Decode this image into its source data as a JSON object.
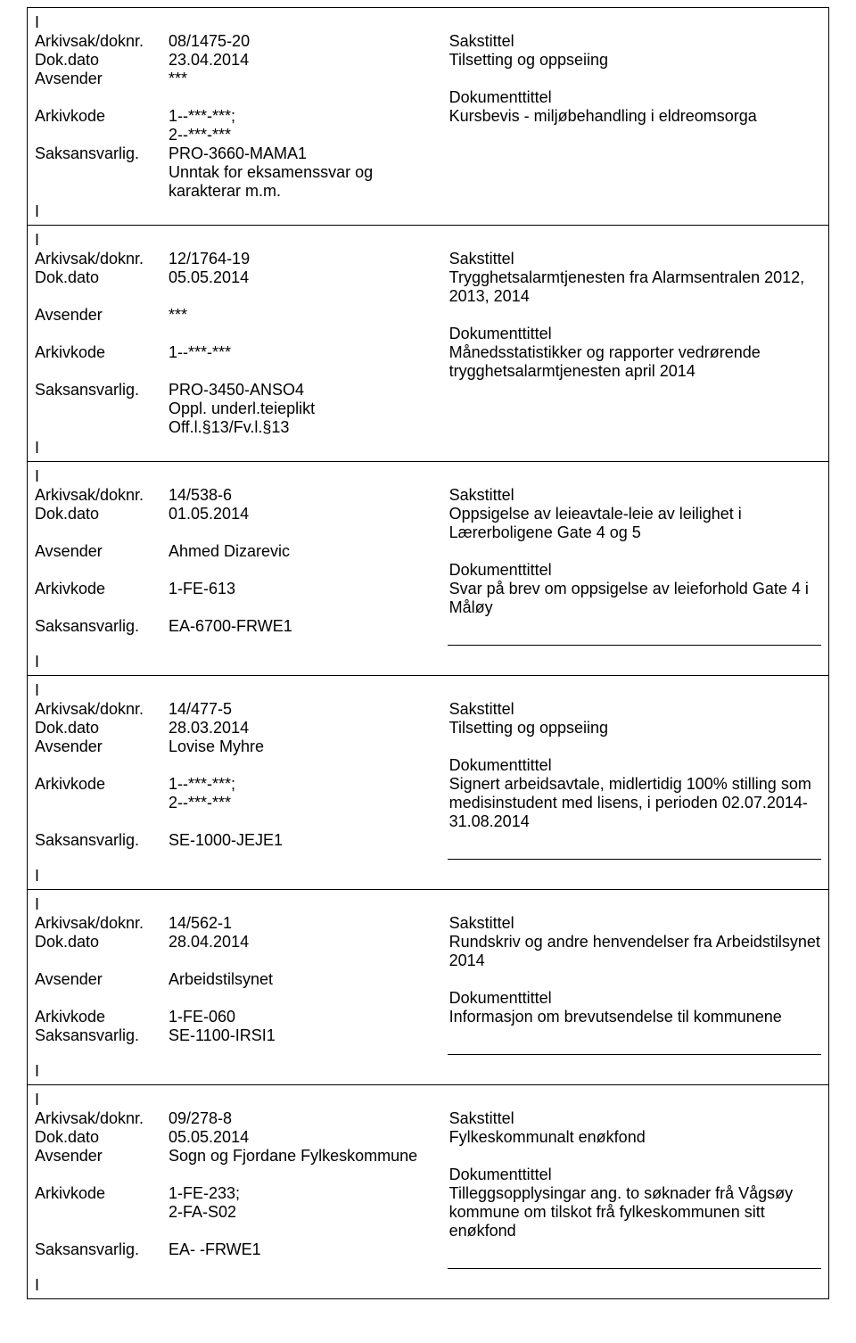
{
  "labels": {
    "arkivsak": "Arkivsak/doknr.",
    "dokdato": "Dok.dato",
    "avsender": "Avsender",
    "arkivkode": "Arkivkode",
    "saksansvarlig": "Saksansvarlig.",
    "sakstittel": "Sakstittel",
    "dokumenttittel": "Dokumenttittel",
    "i": "I"
  },
  "records": [
    {
      "arkivsak": "08/1475-20",
      "dokdato": "23.04.2014",
      "avsender": "***",
      "arkivkode": "1--***-***; 2--***-***",
      "saksansvarlig": "PRO-3660-MAMA1",
      "saksansvarlig_extra": "Unntak for eksamenssvar og karakterar m.m.",
      "sakstittel": "Tilsetting og oppseiing",
      "dokumenttittel": "Kursbevis - miljøbehandling i eldreomsorga",
      "has_separator": false
    },
    {
      "arkivsak": "12/1764-19",
      "dokdato": "05.05.2014",
      "avsender": "***",
      "arkivkode": "1--***-***",
      "saksansvarlig": "PRO-3450-ANSO4",
      "saksansvarlig_extra": "Oppl. underl.teieplikt Off.l.§13/Fv.l.§13",
      "sakstittel": "Trygghetsalarmtjenesten fra Alarmsentralen 2012, 2013, 2014",
      "dokumenttittel": "Månedsstatistikker og rapporter vedrørende trygghetsalarmtjenesten april 2014",
      "has_separator": false
    },
    {
      "arkivsak": "14/538-6",
      "dokdato": "01.05.2014",
      "avsender": "Ahmed Dizarevic",
      "arkivkode": "1-FE-613",
      "saksansvarlig": "EA-6700-FRWE1",
      "saksansvarlig_extra": "",
      "sakstittel": "Oppsigelse av leieavtale-leie av leilighet i Lærerboligene Gate 4 og 5",
      "dokumenttittel": "Svar på brev om oppsigelse av leieforhold Gate 4 i Måløy",
      "has_separator": true
    },
    {
      "arkivsak": "14/477-5",
      "dokdato": "28.03.2014",
      "avsender": "Lovise Myhre",
      "arkivkode": "1--***-***; 2--***-***",
      "saksansvarlig": "SE-1000-JEJE1",
      "saksansvarlig_extra": "",
      "sakstittel": "Tilsetting og oppseiing",
      "dokumenttittel": "Signert arbeidsavtale, midlertidig 100% stilling som medisinstudent med lisens, i perioden 02.07.2014-31.08.2014",
      "has_separator": true
    },
    {
      "arkivsak": "14/562-1",
      "dokdato": "28.04.2014",
      "avsender": "Arbeidstilsynet",
      "arkivkode": "1-FE-060",
      "saksansvarlig": "SE-1100-IRSI1",
      "saksansvarlig_extra": "",
      "sakstittel": "Rundskriv og andre henvendelser fra Arbeidstilsynet 2014",
      "dokumenttittel": "Informasjon om brevutsendelse til kommunene",
      "has_separator": true
    },
    {
      "arkivsak": "09/278-8",
      "dokdato": "05.05.2014",
      "avsender": "Sogn og Fjordane Fylkeskommune",
      "arkivkode": "1-FE-233; 2-FA-S02",
      "saksansvarlig": "EA- -FRWE1",
      "saksansvarlig_extra": "",
      "sakstittel": "Fylkeskommunalt enøkfond",
      "dokumenttittel": "Tilleggsopplysingar ang. to søknader frå Vågsøy kommune om tilskot frå fylkeskommunen sitt enøkfond",
      "has_separator": true
    }
  ]
}
